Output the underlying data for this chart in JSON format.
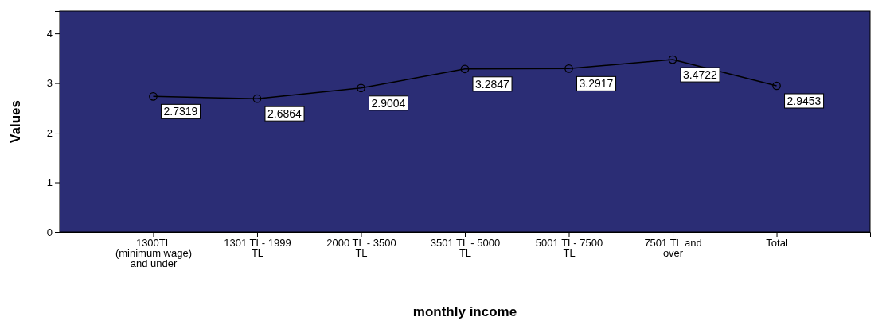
{
  "chart_data": {
    "type": "line",
    "xlabel": "monthly income",
    "ylabel": "Values",
    "categories": [
      "1300TL (minimum wage) and under",
      "1301 TL- 1999 TL",
      "2000 TL - 3500 TL",
      "3501 TL - 5000 TL",
      "5001 TL- 7500 TL",
      "7501 TL and over",
      "Total"
    ],
    "series": [
      {
        "color": "#000000",
        "values": [
          2.7319,
          2.6864,
          2.9004,
          3.2847,
          3.2917,
          3.4722,
          2.9453
        ]
      }
    ],
    "ylim": [
      0,
      4.45
    ],
    "yticks": [
      0,
      1,
      2,
      3,
      4
    ],
    "grid": false,
    "marker": "circle",
    "line_style": "solid",
    "data_labels": true
  }
}
